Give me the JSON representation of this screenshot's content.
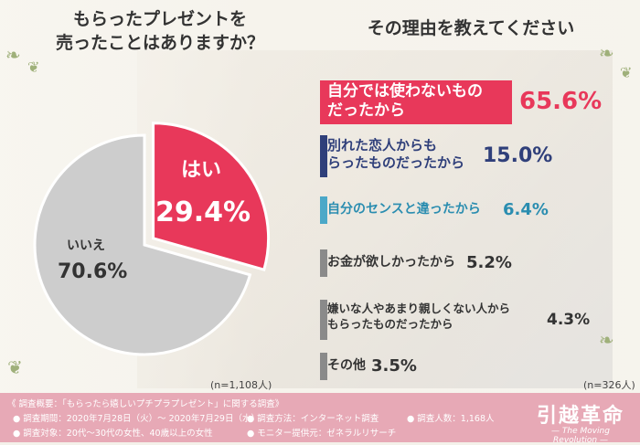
{
  "header": {
    "left_question_line1": "もらったプレゼントを",
    "left_question_line2": "売ったことはありますか？",
    "right_question": "その理由を教えてください"
  },
  "pie": {
    "yes_label": "はい",
    "yes_value": "29.4%",
    "no_label": "いいえ",
    "no_value": "70.6%",
    "n": "(n=1,108人)"
  },
  "bars_n": "(n=326人)",
  "chart_data": [
    {
      "type": "pie",
      "categories": [
        "はい",
        "いいえ"
      ],
      "values": [
        29.4,
        70.6
      ],
      "colors": [
        "#e8385a",
        "#cdcdcd"
      ]
    },
    {
      "type": "bar",
      "categories": [
        "自分では使わないものだったから",
        "別れた恋人からもらったものだったから",
        "自分のセンスと違ったから",
        "お金が欲しかったから",
        "嫌いな人やあまり親しくない人からもらったものだったから",
        "その他"
      ],
      "values": [
        65.6,
        15.0,
        6.4,
        5.2,
        4.3,
        3.5
      ]
    }
  ],
  "bar_items": [
    {
      "line1": "自分では使わないもの",
      "line2": "だったから",
      "pct": "65.6%",
      "color": "#e8385a",
      "text_color": "#ffffff",
      "pct_color": "#e8385a"
    },
    {
      "line1": "別れた恋人からも",
      "line2": "らったものだったから",
      "pct": "15.0%",
      "color": "#2f3f7a",
      "text_color": "#2f3f7a",
      "pct_color": "#2f3f7a"
    },
    {
      "line1": "自分のセンスと違ったから",
      "line2": "",
      "pct": "6.4%",
      "color": "#4ba8c8",
      "text_color": "#2a8db0",
      "pct_color": "#2a8db0"
    },
    {
      "line1": "お金が欲しかったから",
      "line2": "",
      "pct": "5.2%",
      "color": "#8a8a8a",
      "text_color": "#333333",
      "pct_color": "#333333"
    },
    {
      "line1": "嫌いな人やあまり親しくない人から",
      "line2": "もらったものだったから",
      "pct": "4.3%",
      "color": "#8a8a8a",
      "text_color": "#333333",
      "pct_color": "#333333"
    },
    {
      "line1": "その他",
      "line2": "",
      "pct": "3.5%",
      "color": "#8a8a8a",
      "text_color": "#333333",
      "pct_color": "#333333"
    }
  ],
  "footer": {
    "summary": "《 調査概要：「もらったら嬉しいプチプラプレゼント」に関する調査》",
    "period": "● 調査期間：2020年7月28日（火）～ 2020年7月29日（水）",
    "method": "● 調査方法：インターネット調査",
    "count": "● 調査人数：1,168人",
    "target": "● 調査対象：20代～30代の女性、40歳以上の女性",
    "provider": "● モニター提供元：ゼネラルリサーチ",
    "logo_main": "引越革命",
    "logo_sub": "— The Moving Revolution —"
  }
}
